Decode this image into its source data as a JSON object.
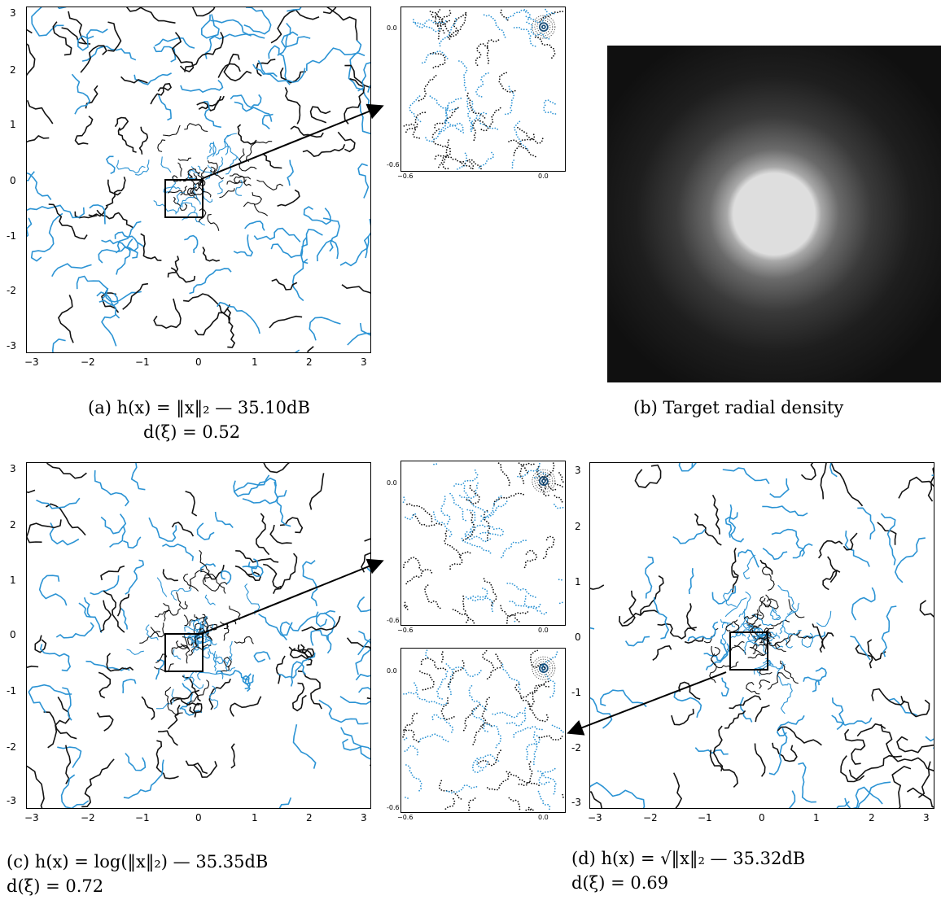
{
  "panels": {
    "a": {
      "label": "(a)",
      "formula": "h(x) = ‖x‖₂ — 35.10dB",
      "metric": "d(ξ) = 0.52",
      "x_ticks": [
        "−3",
        "−2",
        "−1",
        "0",
        "1",
        "2",
        "3"
      ],
      "y_ticks": [
        "3",
        "2",
        "1",
        "0",
        "-1",
        "-2",
        "-3"
      ]
    },
    "b": {
      "label": "(b)",
      "title": "Target radial density"
    },
    "c": {
      "label": "(c)",
      "formula": "h(x) = log(‖x‖₂) — 35.35dB",
      "metric": "d(ξ) = 0.72",
      "x_ticks": [
        "−3",
        "−2",
        "−1",
        "0",
        "1",
        "2",
        "3"
      ],
      "y_ticks": [
        "3",
        "2",
        "1",
        "0",
        "-1",
        "-2",
        "-3"
      ]
    },
    "d": {
      "label": "(d)",
      "formula": "h(x) = √‖x‖₂ — 35.32dB",
      "metric": "d(ξ) = 0.69",
      "x_ticks": [
        "−3",
        "−2",
        "−1",
        "0",
        "1",
        "2",
        "3"
      ],
      "y_ticks": [
        "3",
        "2",
        "1",
        "0",
        "-1",
        "-2",
        "-3"
      ]
    }
  },
  "insets": {
    "y_ticks": [
      "0.0",
      "-0.6"
    ],
    "x_ticks": [
      "−0.6",
      "0.0"
    ]
  },
  "colors": {
    "curve_blue": "#2b93d4",
    "curve_black": "#111111",
    "frame": "#000000"
  }
}
